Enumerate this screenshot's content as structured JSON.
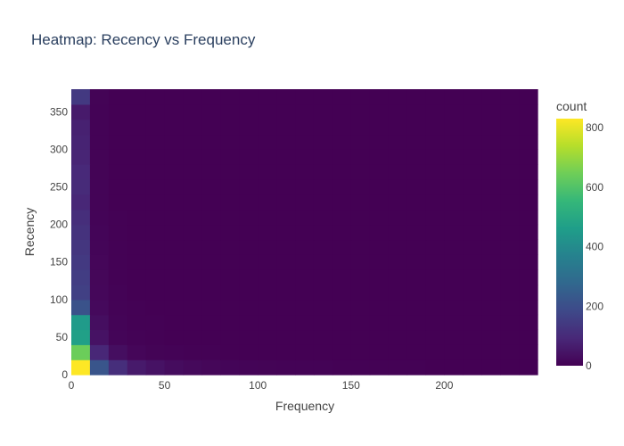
{
  "chart_data": {
    "type": "heatmap",
    "title": "Heatmap: Recency vs Frequency",
    "xlabel": "Frequency",
    "ylabel": "Recency",
    "xlim": [
      0,
      250
    ],
    "ylim": [
      0,
      380
    ],
    "x_bin_width": 10,
    "y_bin_width": 20,
    "x_ticks": [
      0,
      50,
      100,
      150,
      200
    ],
    "y_ticks": [
      0,
      50,
      100,
      150,
      200,
      250,
      300,
      350
    ],
    "colorbar": {
      "title": "count",
      "range": [
        0,
        830
      ],
      "ticks": [
        0,
        200,
        400,
        600,
        800
      ],
      "colorscale": [
        "#440154",
        "#482878",
        "#3e4989",
        "#31688e",
        "#26828e",
        "#1f9e89",
        "#35b779",
        "#6ece58",
        "#b5de2b",
        "#fde725"
      ]
    },
    "y_bins": [
      0,
      20,
      40,
      60,
      80,
      100,
      120,
      140,
      160,
      180,
      200,
      220,
      240,
      260,
      280,
      300,
      320,
      340,
      360
    ],
    "counts": [
      [
        830,
        220,
        110,
        60,
        40,
        25,
        18,
        14,
        10,
        8,
        6,
        5,
        4,
        4,
        3,
        3,
        2,
        2,
        2,
        1,
        1,
        1,
        1,
        1,
        0
      ],
      [
        640,
        90,
        30,
        12,
        6,
        4,
        3,
        2,
        1,
        1,
        1,
        0,
        0,
        0,
        0,
        0,
        0,
        0,
        0,
        0,
        0,
        0,
        0,
        0,
        0
      ],
      [
        470,
        40,
        10,
        4,
        2,
        1,
        1,
        0,
        0,
        0,
        0,
        0,
        0,
        0,
        0,
        0,
        0,
        0,
        0,
        0,
        0,
        0,
        0,
        0,
        0
      ],
      [
        450,
        30,
        8,
        3,
        2,
        1,
        0,
        0,
        0,
        0,
        0,
        0,
        0,
        0,
        0,
        0,
        0,
        0,
        0,
        0,
        0,
        0,
        0,
        0,
        0
      ],
      [
        210,
        20,
        5,
        2,
        1,
        0,
        0,
        0,
        0,
        0,
        0,
        0,
        0,
        0,
        0,
        0,
        0,
        0,
        0,
        0,
        0,
        0,
        0,
        0,
        0
      ],
      [
        160,
        15,
        4,
        1,
        1,
        0,
        0,
        0,
        0,
        0,
        0,
        0,
        0,
        0,
        0,
        0,
        0,
        0,
        0,
        0,
        0,
        0,
        0,
        0,
        0
      ],
      [
        150,
        14,
        3,
        1,
        0,
        0,
        0,
        0,
        0,
        0,
        0,
        0,
        0,
        0,
        0,
        0,
        0,
        0,
        0,
        0,
        0,
        0,
        0,
        0,
        0
      ],
      [
        140,
        12,
        3,
        1,
        0,
        0,
        0,
        0,
        0,
        0,
        0,
        0,
        0,
        0,
        0,
        0,
        0,
        0,
        0,
        0,
        0,
        0,
        0,
        0,
        0
      ],
      [
        130,
        10,
        2,
        1,
        0,
        0,
        0,
        0,
        0,
        0,
        0,
        0,
        0,
        0,
        0,
        0,
        0,
        0,
        0,
        0,
        0,
        0,
        0,
        0,
        0
      ],
      [
        120,
        9,
        2,
        0,
        0,
        0,
        0,
        0,
        0,
        0,
        0,
        0,
        0,
        0,
        0,
        0,
        0,
        0,
        0,
        0,
        0,
        0,
        0,
        0,
        0
      ],
      [
        110,
        8,
        2,
        0,
        0,
        0,
        0,
        0,
        0,
        0,
        0,
        0,
        0,
        0,
        0,
        0,
        0,
        0,
        0,
        0,
        0,
        0,
        0,
        0,
        0
      ],
      [
        90,
        7,
        1,
        0,
        0,
        0,
        0,
        0,
        0,
        0,
        0,
        0,
        0,
        0,
        0,
        0,
        0,
        0,
        0,
        0,
        0,
        0,
        0,
        0,
        0
      ],
      [
        100,
        7,
        1,
        0,
        0,
        0,
        0,
        0,
        0,
        0,
        0,
        0,
        0,
        0,
        0,
        0,
        0,
        0,
        0,
        0,
        0,
        0,
        0,
        0,
        0
      ],
      [
        95,
        6,
        1,
        0,
        0,
        0,
        0,
        0,
        0,
        0,
        0,
        0,
        0,
        0,
        0,
        0,
        0,
        0,
        0,
        0,
        0,
        0,
        0,
        0,
        0
      ],
      [
        85,
        6,
        1,
        0,
        0,
        0,
        0,
        0,
        0,
        0,
        0,
        0,
        0,
        0,
        0,
        0,
        0,
        0,
        0,
        0,
        0,
        0,
        0,
        0,
        0
      ],
      [
        80,
        5,
        1,
        0,
        0,
        0,
        0,
        0,
        0,
        0,
        0,
        0,
        0,
        0,
        0,
        0,
        0,
        0,
        0,
        0,
        0,
        0,
        0,
        0,
        0
      ],
      [
        75,
        5,
        1,
        0,
        0,
        0,
        0,
        0,
        0,
        0,
        0,
        0,
        0,
        0,
        0,
        0,
        0,
        0,
        0,
        0,
        0,
        0,
        0,
        0,
        0
      ],
      [
        60,
        4,
        0,
        0,
        0,
        0,
        0,
        0,
        0,
        0,
        0,
        0,
        0,
        0,
        0,
        0,
        0,
        0,
        0,
        0,
        0,
        0,
        0,
        0,
        0
      ],
      [
        140,
        6,
        1,
        0,
        0,
        0,
        0,
        0,
        0,
        0,
        0,
        0,
        0,
        0,
        0,
        0,
        0,
        0,
        0,
        0,
        0,
        0,
        0,
        0,
        0
      ]
    ]
  }
}
